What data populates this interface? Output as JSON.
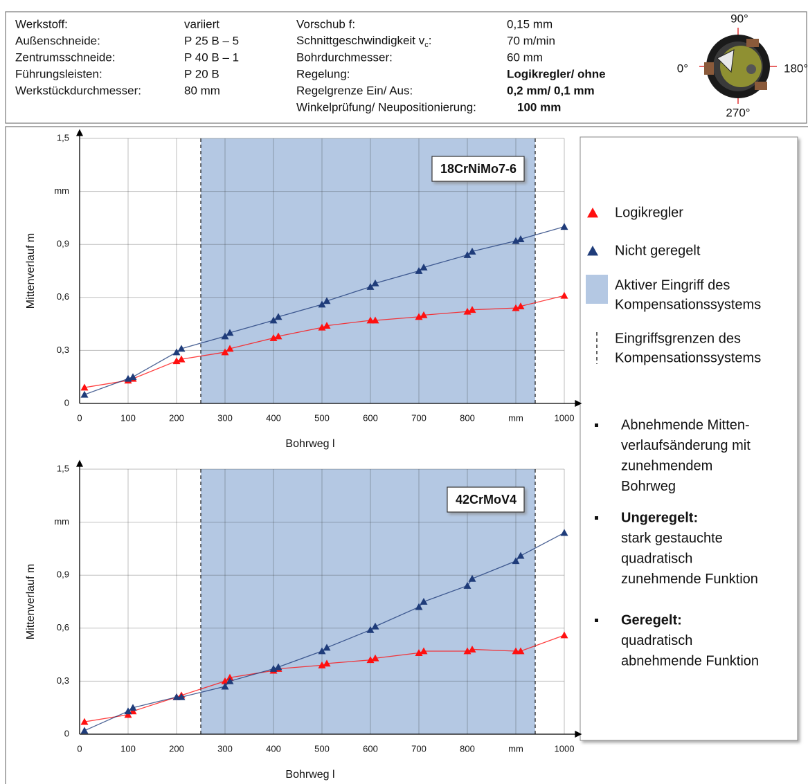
{
  "header": {
    "left": [
      [
        "Werkstoff:",
        "variiert"
      ],
      [
        "Außenschneide:",
        "P 25 B – 5"
      ],
      [
        "Zentrumsschneide:",
        "P 40 B – 1"
      ],
      [
        "Führungsleisten:",
        "P 20 B"
      ],
      [
        "Werkstückdurchmesser:",
        "80 mm"
      ]
    ],
    "right": [
      [
        "Vorschub f:",
        "0,15 mm"
      ],
      [
        {
          "main": "Schnittgeschwindigkeit v",
          "sub": "c",
          "tail": ":"
        },
        "70 m/min"
      ],
      [
        "Bohrdurchmesser:",
        "60 mm"
      ],
      [
        "Regelung:",
        "Logikregler/ ohne"
      ],
      [
        "Regelgrenze Ein/ Aus:",
        "0,2 mm/ 0,1 mm"
      ],
      [
        "Winkelprüfung/ Neupositionierung:",
        "100 mm"
      ]
    ],
    "angles": [
      "90°",
      "0°",
      "180°",
      "270°"
    ]
  },
  "chart_data": [
    {
      "type": "line",
      "title": "18CrNiMo7-6",
      "x_label": "Bohrweg l",
      "y_label": "Mittenverlauf m",
      "x": [
        10,
        100,
        110,
        200,
        210,
        300,
        310,
        400,
        410,
        500,
        510,
        600,
        610,
        700,
        710,
        800,
        810,
        900,
        910,
        1000
      ],
      "series": [
        {
          "name": "Logikregler",
          "color": "#ff1010",
          "values": [
            0.09,
            0.13,
            0.14,
            0.24,
            0.25,
            0.29,
            0.31,
            0.37,
            0.38,
            0.43,
            0.44,
            0.47,
            0.47,
            0.49,
            0.5,
            0.52,
            0.53,
            0.54,
            0.55,
            0.61
          ]
        },
        {
          "name": "Nicht geregelt",
          "color": "#1f3c7a",
          "values": [
            0.05,
            0.14,
            0.15,
            0.29,
            0.31,
            0.38,
            0.4,
            0.47,
            0.49,
            0.56,
            0.58,
            0.66,
            0.68,
            0.75,
            0.77,
            0.84,
            0.86,
            0.92,
            0.93,
            1.0
          ]
        }
      ],
      "shade": [
        250,
        940
      ],
      "shade_color": "#b4c8e3",
      "xlim": [
        0,
        1000
      ],
      "xticks": [
        0,
        100,
        200,
        300,
        400,
        500,
        600,
        700,
        800,
        {
          "value": 900,
          "label": "mm"
        },
        1000
      ],
      "ylim": [
        0,
        1.5
      ],
      "yticks": [
        0,
        {
          "value": 0.3,
          "label": "0,3"
        },
        {
          "value": 0.6,
          "label": "0,6"
        },
        {
          "value": 0.9,
          "label": "0,9"
        },
        {
          "value": 1.2,
          "label": "mm"
        },
        {
          "value": 1.5,
          "label": "1,5"
        }
      ],
      "grid": true
    },
    {
      "type": "line",
      "title": "42CrMoV4",
      "x_label": "Bohrweg l",
      "y_label": "Mittenverlauf m",
      "x": [
        10,
        100,
        110,
        200,
        210,
        300,
        310,
        400,
        410,
        500,
        510,
        600,
        610,
        700,
        710,
        800,
        810,
        900,
        910,
        1000
      ],
      "series": [
        {
          "name": "Logikregler",
          "color": "#ff1010",
          "values": [
            0.07,
            0.11,
            0.13,
            0.21,
            0.22,
            0.3,
            0.32,
            0.36,
            0.37,
            0.39,
            0.4,
            0.42,
            0.43,
            0.46,
            0.47,
            0.47,
            0.48,
            0.47,
            0.47,
            0.56
          ]
        },
        {
          "name": "Nicht geregelt",
          "color": "#1f3c7a",
          "values": [
            0.02,
            0.13,
            0.15,
            0.21,
            0.21,
            0.27,
            0.3,
            0.37,
            0.38,
            0.47,
            0.49,
            0.59,
            0.61,
            0.72,
            0.75,
            0.84,
            0.88,
            0.98,
            1.01,
            1.14
          ]
        }
      ],
      "shade": [
        250,
        940
      ],
      "shade_color": "#b4c8e3",
      "xlim": [
        0,
        1000
      ],
      "xticks": [
        0,
        100,
        200,
        300,
        400,
        500,
        600,
        700,
        800,
        {
          "value": 900,
          "label": "mm"
        },
        1000
      ],
      "ylim": [
        0,
        1.5
      ],
      "yticks": [
        0,
        {
          "value": 0.3,
          "label": "0,3"
        },
        {
          "value": 0.6,
          "label": "0,6"
        },
        {
          "value": 0.9,
          "label": "0,9"
        },
        {
          "value": 1.2,
          "label": "mm"
        },
        {
          "value": 1.5,
          "label": "1,5"
        }
      ],
      "grid": true
    }
  ],
  "legend": {
    "shade_label": [
      "Aktiver Eingriff des",
      "Kompensationssystems"
    ],
    "limit_label": [
      "Eingriffsgrenzen des",
      "Kompensationssystems"
    ]
  },
  "notes": [
    {
      "lines": [
        "Abnehmende Mitten-",
        "verlaufsänderung mit",
        "zunehmendem",
        "Bohrweg"
      ]
    },
    {
      "heading": "Ungeregelt:",
      "lines": [
        "stark gestauchte",
        "quadratisch",
        "zunehmende Funktion"
      ]
    },
    {
      "heading": "Geregelt:",
      "lines": [
        "quadratisch",
        "abnehmende Funktion"
      ]
    }
  ]
}
